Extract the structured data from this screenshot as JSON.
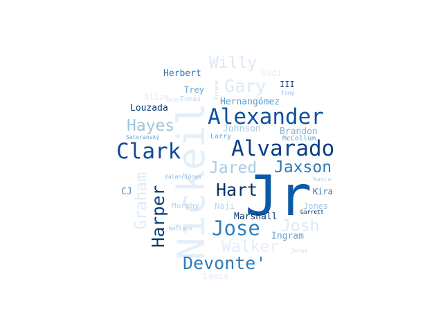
{
  "words": [
    {
      "text": "Jr",
      "color": "#0b5aa6"
    },
    {
      "text": "Nickeil",
      "color": "#e3eef9"
    },
    {
      "text": "Alexander",
      "color": "#0e509e"
    },
    {
      "text": "Alvarado",
      "color": "#0a3f86"
    },
    {
      "text": "Clark",
      "color": "#0c4a98"
    },
    {
      "text": "Devonte'",
      "color": "#2b7bba"
    },
    {
      "text": "Jose",
      "color": "#2f7fbc"
    },
    {
      "text": "Hart",
      "color": "#08306b"
    },
    {
      "text": "Jaxson",
      "color": "#2a79b8"
    },
    {
      "text": "Jared",
      "color": "#a9cce3"
    },
    {
      "text": "Harper",
      "color": "#0a3a7a"
    },
    {
      "text": "Hayes",
      "color": "#9cc5df"
    },
    {
      "text": "Gary",
      "color": "#dce9f6"
    },
    {
      "text": "Willy",
      "color": "#dbe8f5"
    },
    {
      "text": "Walker",
      "color": "#e3eef9"
    },
    {
      "text": "Josh",
      "color": "#dde9f5"
    },
    {
      "text": "Graham",
      "color": "#dfebf7"
    },
    {
      "text": "Herbert",
      "color": "#2c75b5"
    },
    {
      "text": "Louzada",
      "color": "#0b3b7c"
    },
    {
      "text": "Hernangómez",
      "color": "#5a9bcb"
    },
    {
      "text": "Johnson",
      "color": "#a6c9e2"
    },
    {
      "text": "Brandon",
      "color": "#7fb2d8"
    },
    {
      "text": "McCollum",
      "color": "#6aa6cf"
    },
    {
      "text": "Larry",
      "color": "#6ba4cf"
    },
    {
      "text": "Trey",
      "color": "#6ba2cd"
    },
    {
      "text": "Alize",
      "color": "#dfeaf5"
    },
    {
      "text": "Tomáš",
      "color": "#c6dbef"
    },
    {
      "text": "Tyrone",
      "color": "#c5dbee"
    },
    {
      "text": "Didi",
      "color": "#e3eef9"
    },
    {
      "text": "III",
      "color": "#0b3d80"
    },
    {
      "text": "Tony",
      "color": "#8fbcdc"
    },
    {
      "text": "Satoranský",
      "color": "#6b9fcc"
    },
    {
      "text": "Valančiūnas",
      "color": "#89b8da"
    },
    {
      "text": "Nance",
      "color": "#b3d3e8"
    },
    {
      "text": "Kira",
      "color": "#2a6fb0"
    },
    {
      "text": "Jones",
      "color": "#a4c8e1"
    },
    {
      "text": "Garrett",
      "color": "#08306b"
    },
    {
      "text": "CJ",
      "color": "#4f8fc5"
    },
    {
      "text": "Murphy",
      "color": "#b7d4ea"
    },
    {
      "text": "Naji",
      "color": "#bcd6eb"
    },
    {
      "text": "Marshall",
      "color": "#08306b"
    },
    {
      "text": "Ingram",
      "color": "#6aa3cf"
    },
    {
      "text": "Wallace",
      "color": "#a9cce3"
    },
    {
      "text": "Jonas",
      "color": "#c6dbef"
    },
    {
      "text": "Lewis",
      "color": "#e3eef9"
    },
    {
      "text": "Jaden",
      "color": "#d7e6f4"
    }
  ]
}
